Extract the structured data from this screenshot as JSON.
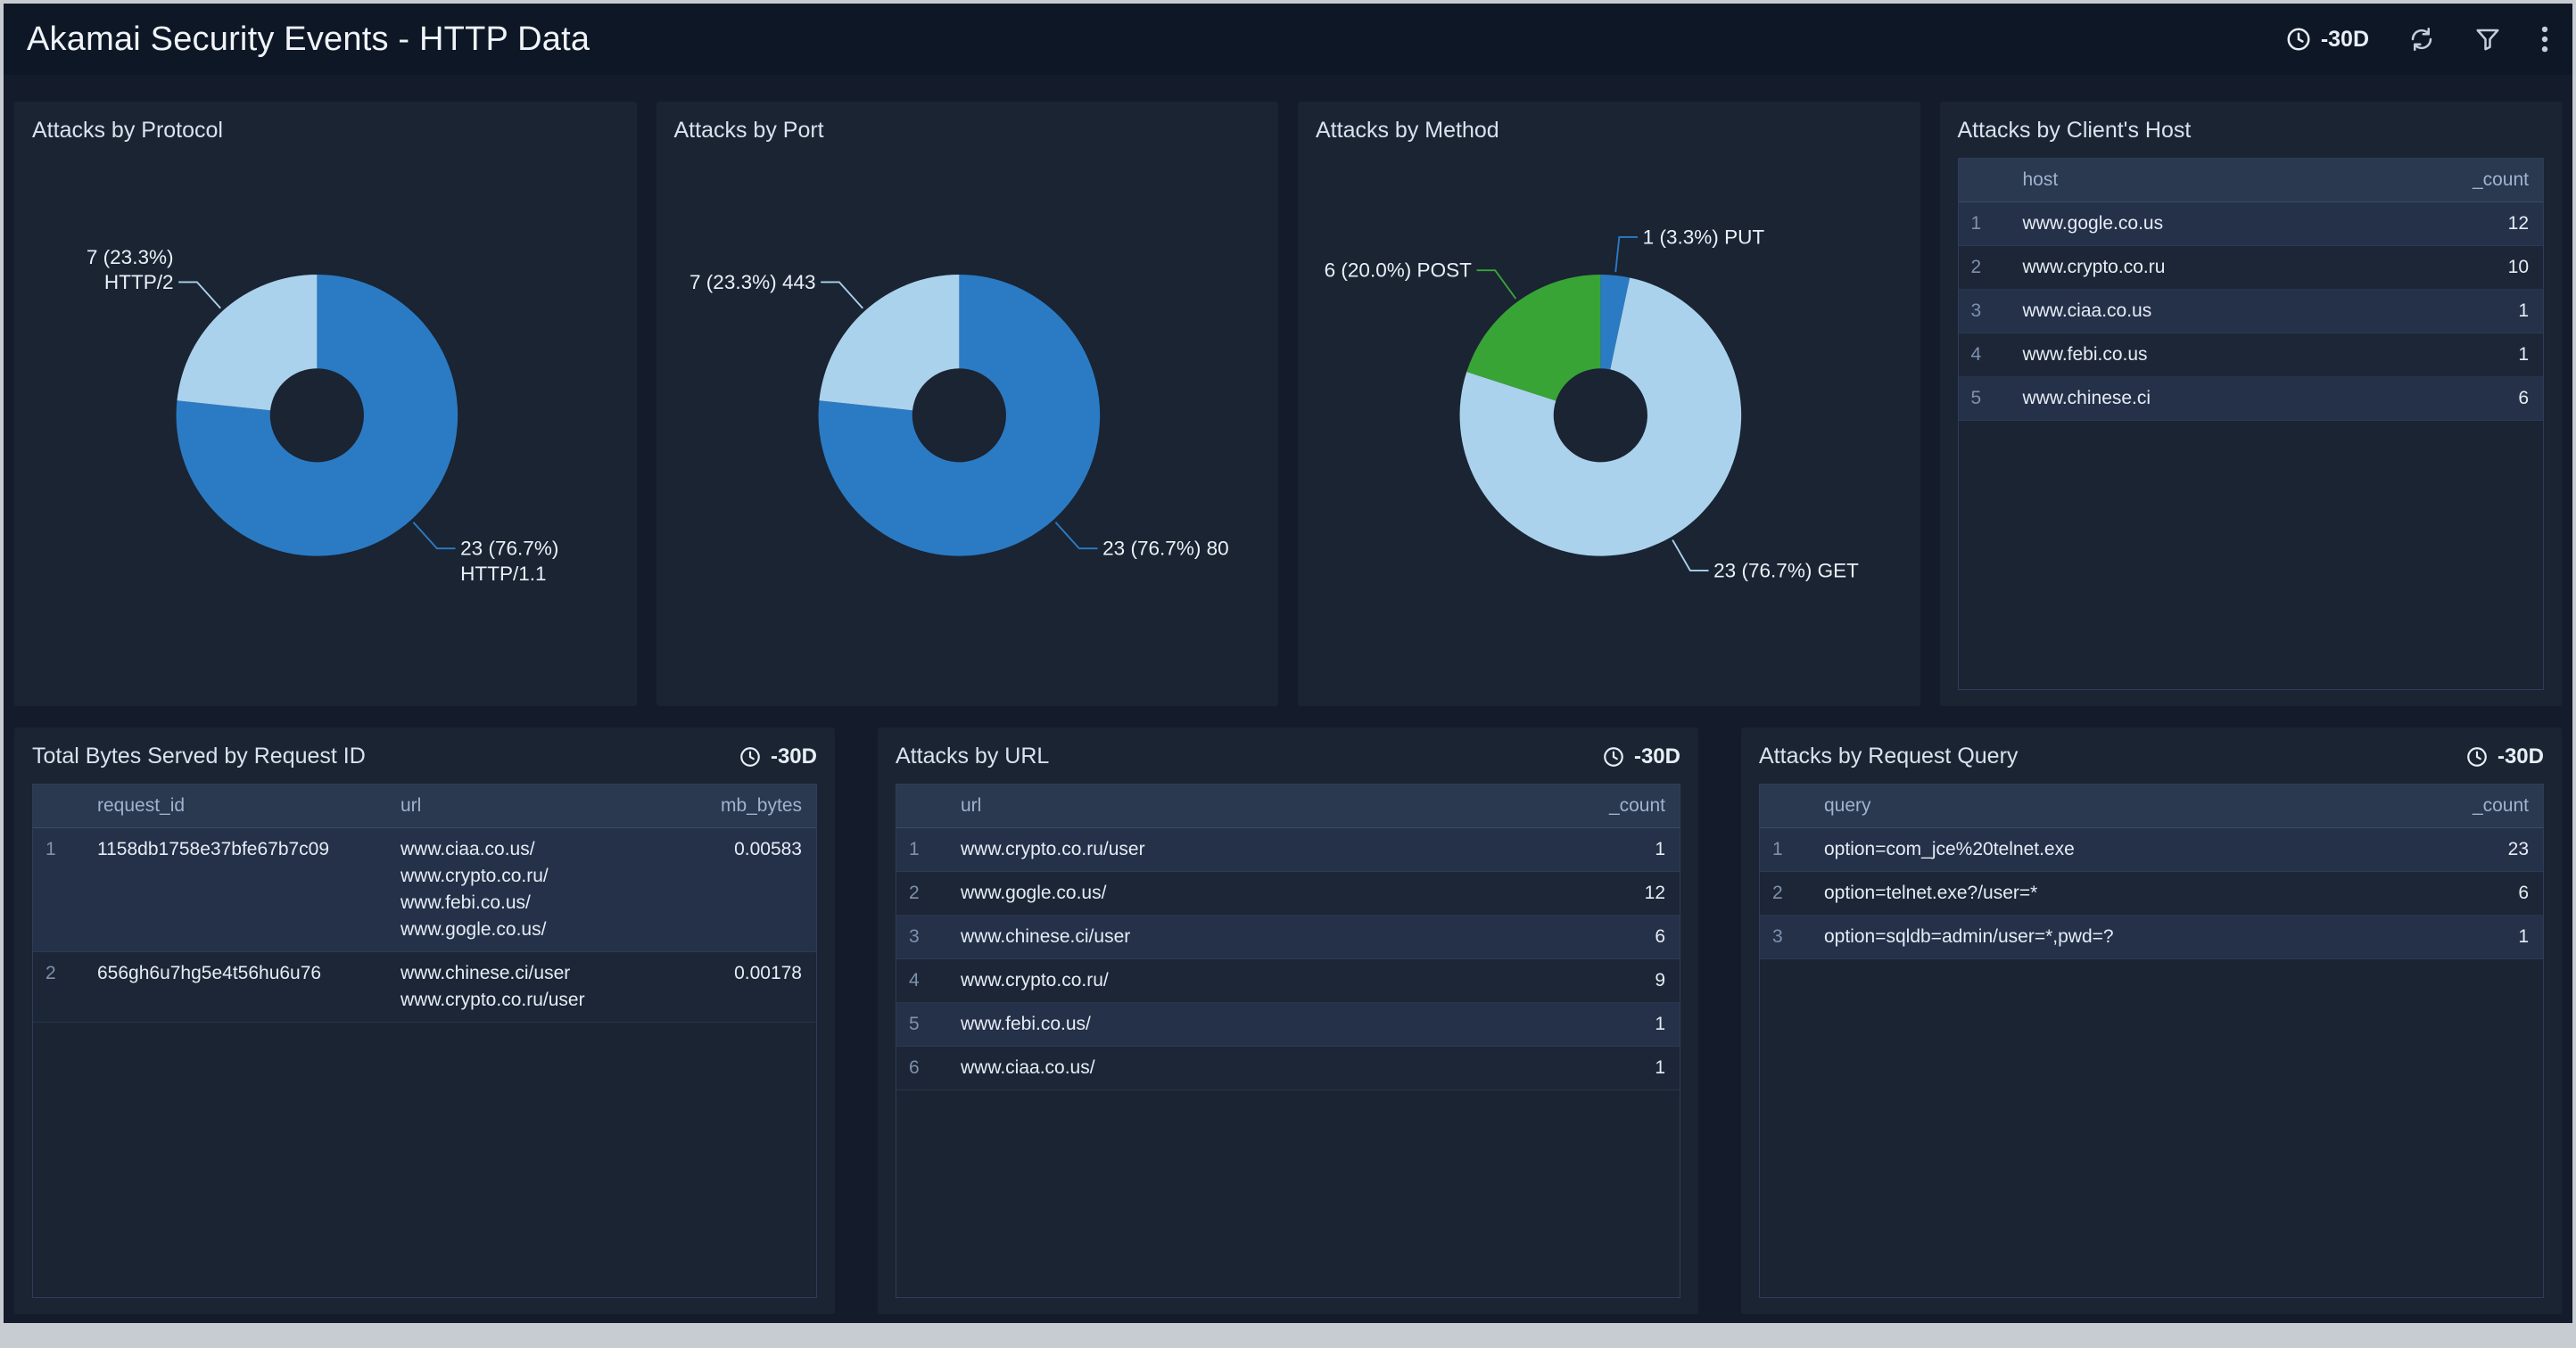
{
  "header": {
    "title": "Akamai Security Events - HTTP Data",
    "time_range": "-30D",
    "icons": [
      "clock-icon",
      "refresh-icon",
      "filter-icon",
      "kebab-menu-icon"
    ]
  },
  "panels": {
    "protocol": {
      "title": "Attacks by Protocol"
    },
    "port": {
      "title": "Attacks by Port"
    },
    "method": {
      "title": "Attacks by Method"
    },
    "client_host": {
      "title": "Attacks by Client's Host",
      "columns": [
        "host",
        "_count"
      ],
      "rows": [
        [
          "www.gogle.co.us",
          "12"
        ],
        [
          "www.crypto.co.ru",
          "10"
        ],
        [
          "www.ciaa.co.us",
          "1"
        ],
        [
          "www.febi.co.us",
          "1"
        ],
        [
          "www.chinese.ci",
          "6"
        ]
      ]
    },
    "total_bytes": {
      "title": "Total Bytes Served by Request ID",
      "time_range": "-30D",
      "columns": [
        "request_id",
        "url",
        "mb_bytes"
      ],
      "rows": [
        [
          "1158db1758e37bfe67b7c09",
          "www.ciaa.co.us/\nwww.crypto.co.ru/\nwww.febi.co.us/\nwww.gogle.co.us/",
          "0.00583"
        ],
        [
          "656gh6u7hg5e4t56hu6u76",
          "www.chinese.ci/user\nwww.crypto.co.ru/user",
          "0.00178"
        ]
      ]
    },
    "attacks_url": {
      "title": "Attacks by URL",
      "time_range": "-30D",
      "columns": [
        "url",
        "_count"
      ],
      "rows": [
        [
          "www.crypto.co.ru/user",
          "1"
        ],
        [
          "www.gogle.co.us/",
          "12"
        ],
        [
          "www.chinese.ci/user",
          "6"
        ],
        [
          "www.crypto.co.ru/",
          "9"
        ],
        [
          "www.febi.co.us/",
          "1"
        ],
        [
          "www.ciaa.co.us/",
          "1"
        ]
      ]
    },
    "attacks_query": {
      "title": "Attacks by Request Query",
      "time_range": "-30D",
      "columns": [
        "query",
        "_count"
      ],
      "rows": [
        [
          "option=com_jce%20telnet.exe",
          "23"
        ],
        [
          "option=telnet.exe?/user=*",
          "6"
        ],
        [
          "option=sqldb=admin/user=*,pwd=?",
          "1"
        ]
      ]
    }
  },
  "chart_data": [
    {
      "type": "pie",
      "title": "Attacks by Protocol",
      "total": 30,
      "legend_position": "none",
      "slices": [
        {
          "name": "HTTP/1.1",
          "value": 23,
          "pct": "76.7%",
          "color": "#2B7BC4",
          "label_lines": [
            "23 (76.7%)",
            "HTTP/1.1"
          ]
        },
        {
          "name": "HTTP/2",
          "value": 7,
          "pct": "23.3%",
          "color": "#ABD2EC",
          "label_lines": [
            "7 (23.3%)",
            "HTTP/2"
          ]
        }
      ]
    },
    {
      "type": "pie",
      "title": "Attacks by Port",
      "total": 30,
      "legend_position": "none",
      "slices": [
        {
          "name": "80",
          "value": 23,
          "pct": "76.7%",
          "color": "#2B7BC4",
          "label_lines": [
            "23 (76.7%) 80"
          ]
        },
        {
          "name": "443",
          "value": 7,
          "pct": "23.3%",
          "color": "#ABD2EC",
          "label_lines": [
            "7 (23.3%) 443"
          ]
        }
      ]
    },
    {
      "type": "pie",
      "title": "Attacks by Method",
      "total": 30,
      "legend_position": "none",
      "slices": [
        {
          "name": "PUT",
          "value": 1,
          "pct": "3.3%",
          "color": "#2B7BC4",
          "label_lines": [
            "1 (3.3%) PUT"
          ]
        },
        {
          "name": "GET",
          "value": 23,
          "pct": "76.7%",
          "color": "#ABD2EC",
          "label_lines": [
            "23 (76.7%) GET"
          ]
        },
        {
          "name": "POST",
          "value": 6,
          "pct": "20.0%",
          "color": "#38A436",
          "label_lines": [
            "6 (20.0%) POST"
          ]
        }
      ]
    }
  ]
}
